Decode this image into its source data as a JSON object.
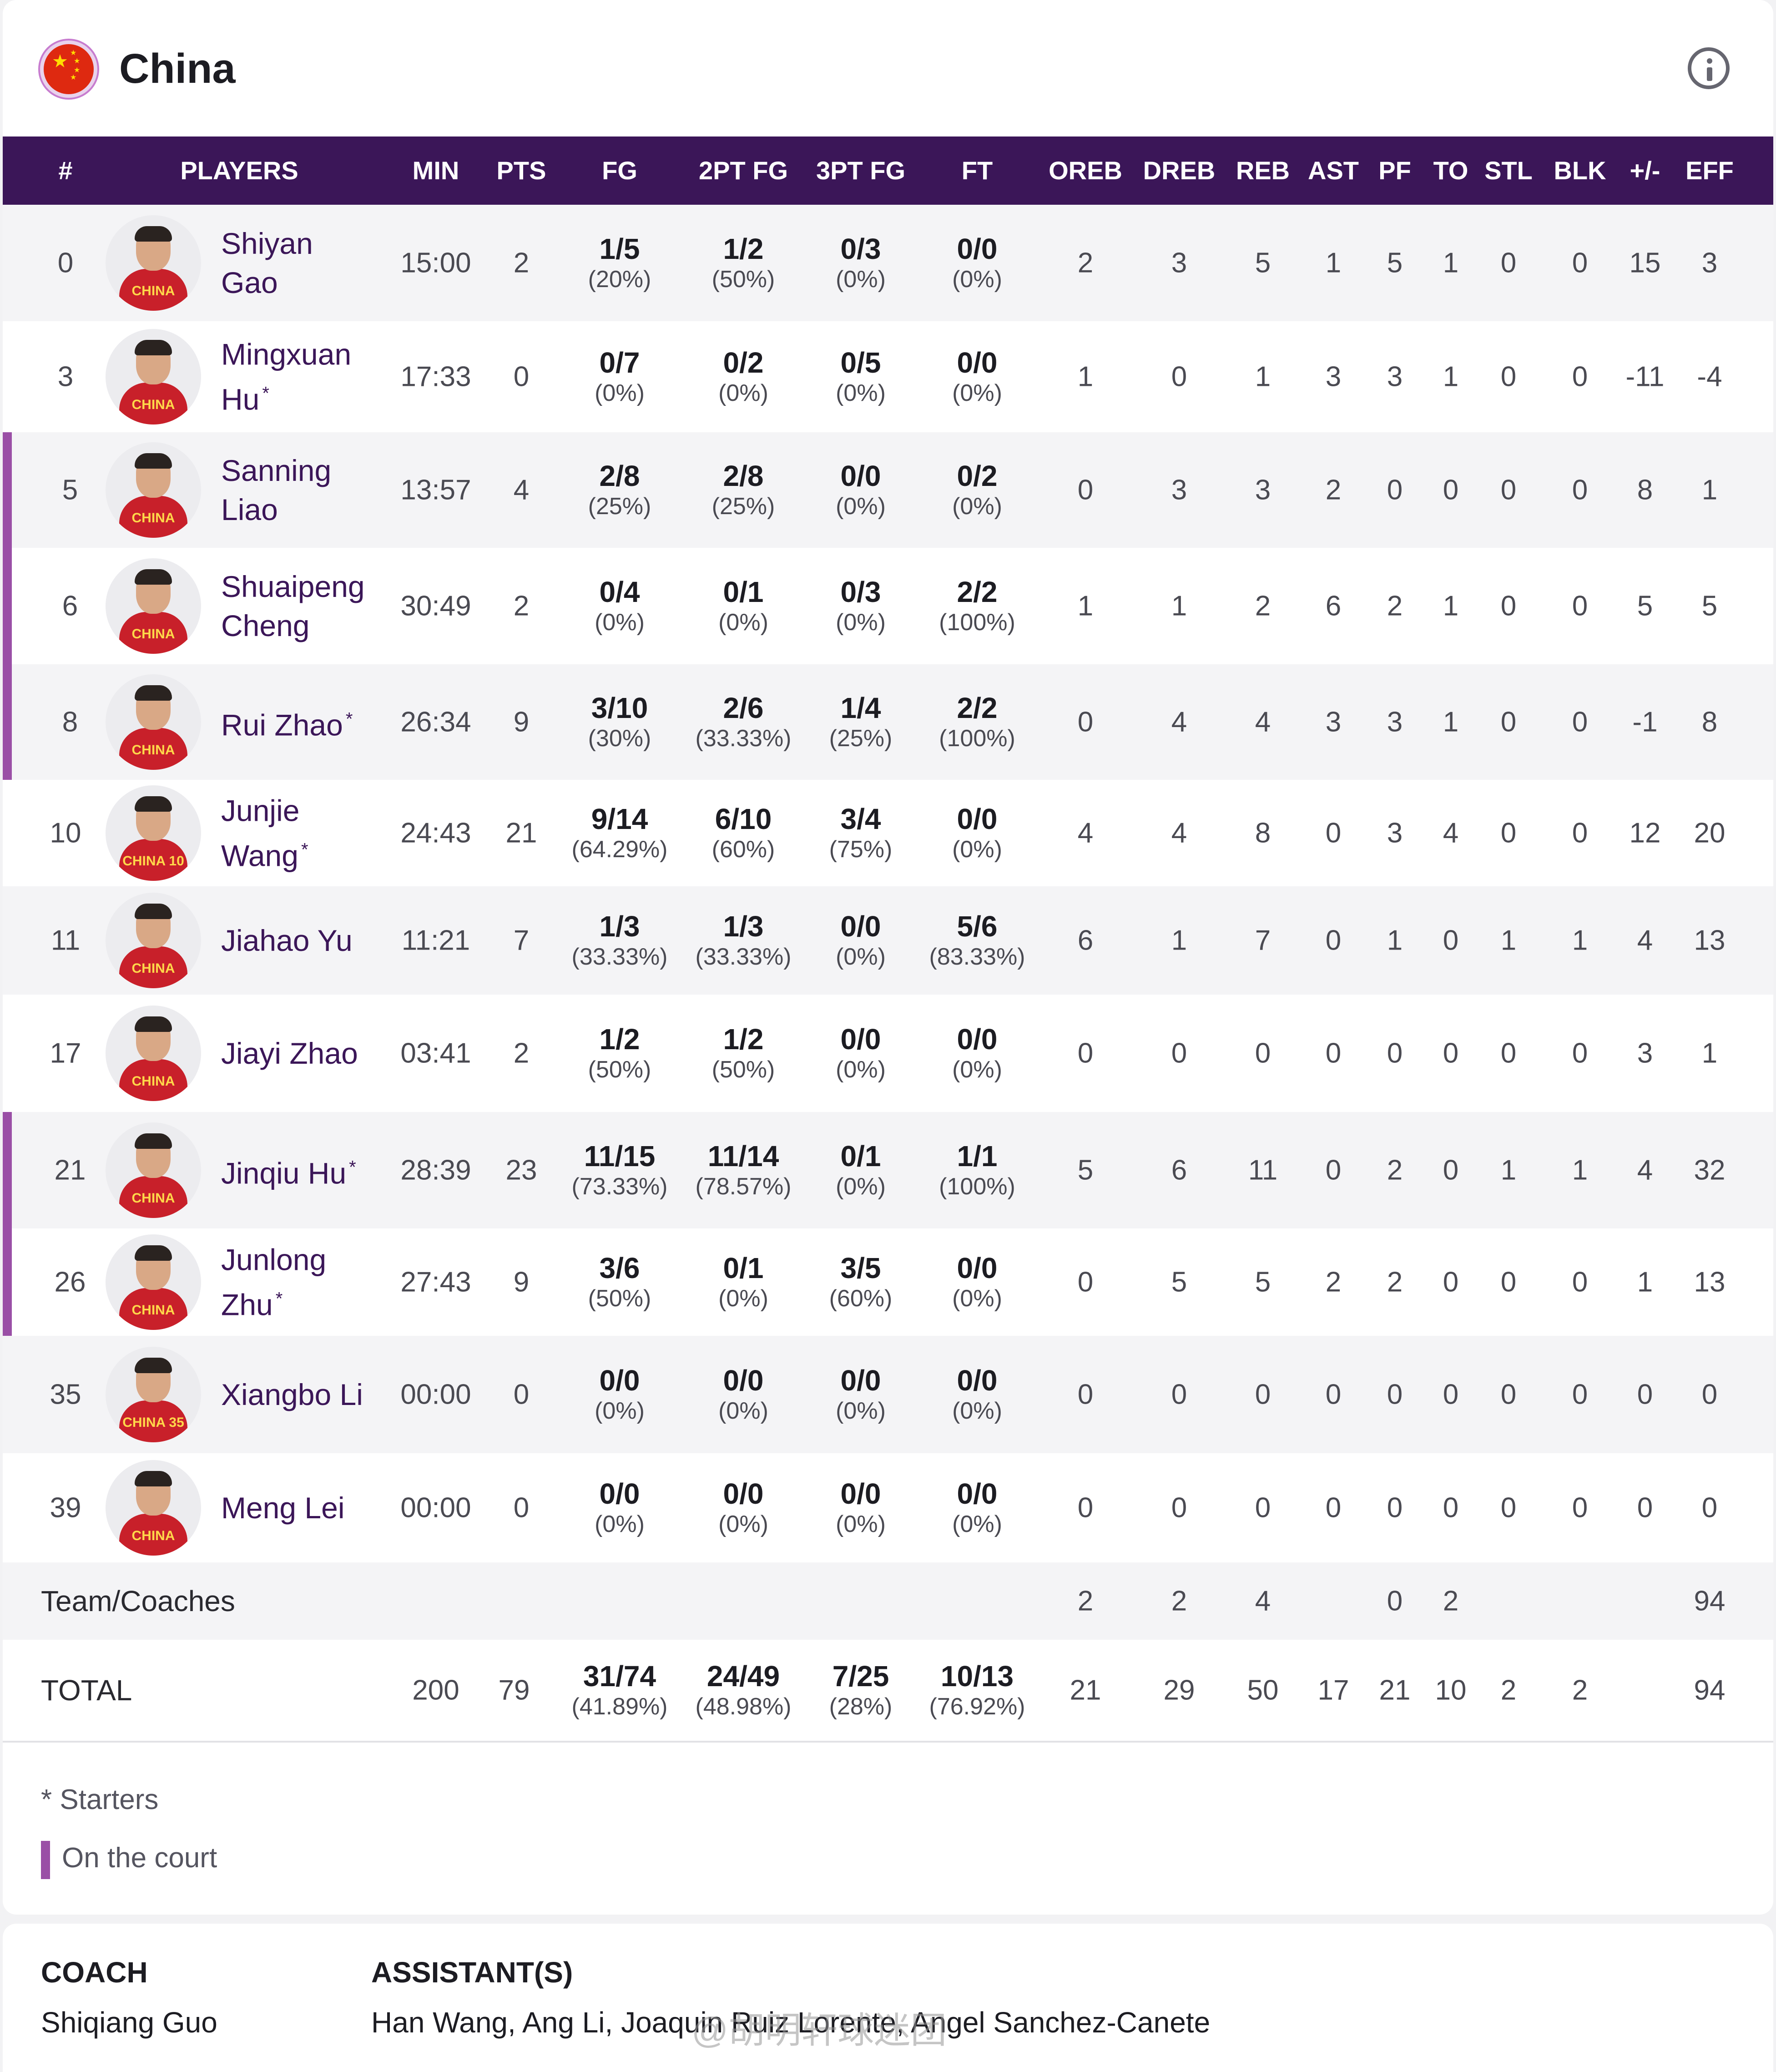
{
  "team": {
    "name": "China",
    "flag_icon": "china-flag-icon",
    "info_icon": "info-icon"
  },
  "columns": [
    "#",
    "PLAYERS",
    "MIN",
    "PTS",
    "FG",
    "2PT FG",
    "3PT FG",
    "FT",
    "OREB",
    "DREB",
    "REB",
    "AST",
    "PF",
    "TO",
    "STL",
    "BLK",
    "+/-",
    "EFF"
  ],
  "players": [
    {
      "num": "0",
      "first": "Shiyan",
      "last": "Gao",
      "starter": false,
      "oncourt": false,
      "jersey": "CHINA",
      "min": "15:00",
      "pts": "2",
      "fg_m": "1/5",
      "fg_p": "(20%)",
      "fg2_m": "1/2",
      "fg2_p": "(50%)",
      "fg3_m": "0/3",
      "fg3_p": "(0%)",
      "ft_m": "0/0",
      "ft_p": "(0%)",
      "oreb": "2",
      "dreb": "3",
      "reb": "5",
      "ast": "1",
      "pf": "5",
      "to": "1",
      "stl": "0",
      "blk": "0",
      "pm": "15",
      "eff": "3"
    },
    {
      "num": "3",
      "first": "Mingxuan",
      "last": "Hu",
      "starter": true,
      "oncourt": false,
      "jersey": "CHINA",
      "min": "17:33",
      "pts": "0",
      "fg_m": "0/7",
      "fg_p": "(0%)",
      "fg2_m": "0/2",
      "fg2_p": "(0%)",
      "fg3_m": "0/5",
      "fg3_p": "(0%)",
      "ft_m": "0/0",
      "ft_p": "(0%)",
      "oreb": "1",
      "dreb": "0",
      "reb": "1",
      "ast": "3",
      "pf": "3",
      "to": "1",
      "stl": "0",
      "blk": "0",
      "pm": "-11",
      "eff": "-4"
    },
    {
      "num": "5",
      "first": "Sanning",
      "last": "Liao",
      "starter": false,
      "oncourt": true,
      "jersey": "CHINA",
      "min": "13:57",
      "pts": "4",
      "fg_m": "2/8",
      "fg_p": "(25%)",
      "fg2_m": "2/8",
      "fg2_p": "(25%)",
      "fg3_m": "0/0",
      "fg3_p": "(0%)",
      "ft_m": "0/2",
      "ft_p": "(0%)",
      "oreb": "0",
      "dreb": "3",
      "reb": "3",
      "ast": "2",
      "pf": "0",
      "to": "0",
      "stl": "0",
      "blk": "0",
      "pm": "8",
      "eff": "1"
    },
    {
      "num": "6",
      "first": "Shuaipeng",
      "last": "Cheng",
      "starter": false,
      "oncourt": true,
      "jersey": "CHINA",
      "min": "30:49",
      "pts": "2",
      "fg_m": "0/4",
      "fg_p": "(0%)",
      "fg2_m": "0/1",
      "fg2_p": "(0%)",
      "fg3_m": "0/3",
      "fg3_p": "(0%)",
      "ft_m": "2/2",
      "ft_p": "(100%)",
      "oreb": "1",
      "dreb": "1",
      "reb": "2",
      "ast": "6",
      "pf": "2",
      "to": "1",
      "stl": "0",
      "blk": "0",
      "pm": "5",
      "eff": "5"
    },
    {
      "num": "8",
      "first": "Rui Zhao",
      "last": "",
      "starter": true,
      "oncourt": true,
      "jersey": "CHINA",
      "min": "26:34",
      "pts": "9",
      "fg_m": "3/10",
      "fg_p": "(30%)",
      "fg2_m": "2/6",
      "fg2_p": "(33.33%)",
      "fg3_m": "1/4",
      "fg3_p": "(25%)",
      "ft_m": "2/2",
      "ft_p": "(100%)",
      "oreb": "0",
      "dreb": "4",
      "reb": "4",
      "ast": "3",
      "pf": "3",
      "to": "1",
      "stl": "0",
      "blk": "0",
      "pm": "-1",
      "eff": "8"
    },
    {
      "num": "10",
      "first": "Junjie",
      "last": "Wang",
      "starter": true,
      "oncourt": false,
      "jersey": "CHINA 10",
      "min": "24:43",
      "pts": "21",
      "fg_m": "9/14",
      "fg_p": "(64.29%)",
      "fg2_m": "6/10",
      "fg2_p": "(60%)",
      "fg3_m": "3/4",
      "fg3_p": "(75%)",
      "ft_m": "0/0",
      "ft_p": "(0%)",
      "oreb": "4",
      "dreb": "4",
      "reb": "8",
      "ast": "0",
      "pf": "3",
      "to": "4",
      "stl": "0",
      "blk": "0",
      "pm": "12",
      "eff": "20"
    },
    {
      "num": "11",
      "first": "Jiahao Yu",
      "last": "",
      "starter": false,
      "oncourt": false,
      "jersey": "CHINA",
      "min": "11:21",
      "pts": "7",
      "fg_m": "1/3",
      "fg_p": "(33.33%)",
      "fg2_m": "1/3",
      "fg2_p": "(33.33%)",
      "fg3_m": "0/0",
      "fg3_p": "(0%)",
      "ft_m": "5/6",
      "ft_p": "(83.33%)",
      "oreb": "6",
      "dreb": "1",
      "reb": "7",
      "ast": "0",
      "pf": "1",
      "to": "0",
      "stl": "1",
      "blk": "1",
      "pm": "4",
      "eff": "13"
    },
    {
      "num": "17",
      "first": "Jiayi Zhao",
      "last": "",
      "starter": false,
      "oncourt": false,
      "jersey": "CHINA",
      "min": "03:41",
      "pts": "2",
      "fg_m": "1/2",
      "fg_p": "(50%)",
      "fg2_m": "1/2",
      "fg2_p": "(50%)",
      "fg3_m": "0/0",
      "fg3_p": "(0%)",
      "ft_m": "0/0",
      "ft_p": "(0%)",
      "oreb": "0",
      "dreb": "0",
      "reb": "0",
      "ast": "0",
      "pf": "0",
      "to": "0",
      "stl": "0",
      "blk": "0",
      "pm": "3",
      "eff": "1"
    },
    {
      "num": "21",
      "first": "Jinqiu Hu",
      "last": "",
      "starter": true,
      "oncourt": true,
      "jersey": "CHINA",
      "min": "28:39",
      "pts": "23",
      "fg_m": "11/15",
      "fg_p": "(73.33%)",
      "fg2_m": "11/14",
      "fg2_p": "(78.57%)",
      "fg3_m": "0/1",
      "fg3_p": "(0%)",
      "ft_m": "1/1",
      "ft_p": "(100%)",
      "oreb": "5",
      "dreb": "6",
      "reb": "11",
      "ast": "0",
      "pf": "2",
      "to": "0",
      "stl": "1",
      "blk": "1",
      "pm": "4",
      "eff": "32"
    },
    {
      "num": "26",
      "first": "Junlong",
      "last": "Zhu",
      "starter": true,
      "oncourt": true,
      "jersey": "CHINA",
      "min": "27:43",
      "pts": "9",
      "fg_m": "3/6",
      "fg_p": "(50%)",
      "fg2_m": "0/1",
      "fg2_p": "(0%)",
      "fg3_m": "3/5",
      "fg3_p": "(60%)",
      "ft_m": "0/0",
      "ft_p": "(0%)",
      "oreb": "0",
      "dreb": "5",
      "reb": "5",
      "ast": "2",
      "pf": "2",
      "to": "0",
      "stl": "0",
      "blk": "0",
      "pm": "1",
      "eff": "13"
    },
    {
      "num": "35",
      "first": "Xiangbo Li",
      "last": "",
      "starter": false,
      "oncourt": false,
      "jersey": "CHINA 35",
      "min": "00:00",
      "pts": "0",
      "fg_m": "0/0",
      "fg_p": "(0%)",
      "fg2_m": "0/0",
      "fg2_p": "(0%)",
      "fg3_m": "0/0",
      "fg3_p": "(0%)",
      "ft_m": "0/0",
      "ft_p": "(0%)",
      "oreb": "0",
      "dreb": "0",
      "reb": "0",
      "ast": "0",
      "pf": "0",
      "to": "0",
      "stl": "0",
      "blk": "0",
      "pm": "0",
      "eff": "0"
    },
    {
      "num": "39",
      "first": "Meng Lei",
      "last": "",
      "starter": false,
      "oncourt": false,
      "jersey": "CHINA",
      "min": "00:00",
      "pts": "0",
      "fg_m": "0/0",
      "fg_p": "(0%)",
      "fg2_m": "0/0",
      "fg2_p": "(0%)",
      "fg3_m": "0/0",
      "fg3_p": "(0%)",
      "ft_m": "0/0",
      "ft_p": "(0%)",
      "oreb": "0",
      "dreb": "0",
      "reb": "0",
      "ast": "0",
      "pf": "0",
      "to": "0",
      "stl": "0",
      "blk": "0",
      "pm": "0",
      "eff": "0"
    }
  ],
  "team_coaches": {
    "label": "Team/Coaches",
    "oreb": "2",
    "dreb": "2",
    "reb": "4",
    "pf": "0",
    "to": "2",
    "eff": "94"
  },
  "total": {
    "label": "TOTAL",
    "min": "200",
    "pts": "79",
    "fg_m": "31/74",
    "fg_p": "(41.89%)",
    "fg2_m": "24/49",
    "fg2_p": "(48.98%)",
    "fg3_m": "7/25",
    "fg3_p": "(28%)",
    "ft_m": "10/13",
    "ft_p": "(76.92%)",
    "oreb": "21",
    "dreb": "29",
    "reb": "50",
    "ast": "17",
    "pf": "21",
    "to": "10",
    "stl": "2",
    "blk": "2",
    "eff": "94"
  },
  "legend": {
    "starters": "* Starters",
    "oncourt": "On the court"
  },
  "coach": {
    "coach_label": "COACH",
    "coach_name": "Shiqiang Guo",
    "assist_label": "ASSISTANT(S)",
    "assist_names": "Han Wang, Ang Li, Joaquin Ruiz Lorente, Angel Sanchez-Canete"
  },
  "watermark": "@胡明轩球迷团"
}
